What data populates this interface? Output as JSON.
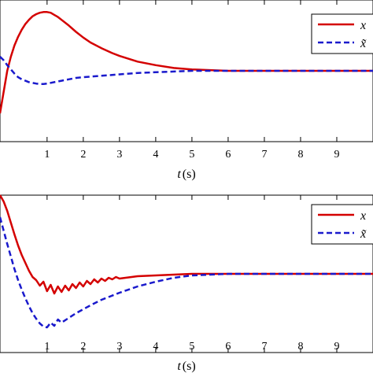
{
  "chart_data": [
    {
      "type": "line",
      "xlabel": "t",
      "xlabel_unit": "(s)",
      "xlim": [
        -0.3,
        10.0
      ],
      "x_ticks": [
        "1",
        "2",
        "3",
        "4",
        "5",
        "6",
        "7",
        "8",
        "9"
      ],
      "ylim": [
        -1.0,
        1.0
      ],
      "grid": false,
      "legend_position": "top-right",
      "series": [
        {
          "name": "x",
          "color": "#d40000",
          "style": "solid",
          "x": [
            -0.3,
            -0.2,
            -0.1,
            0,
            0.1,
            0.2,
            0.3,
            0.4,
            0.5,
            0.6,
            0.7,
            0.8,
            0.9,
            1.0,
            1.1,
            1.2,
            1.3,
            1.4,
            1.6,
            1.8,
            2.0,
            2.2,
            2.5,
            2.8,
            3.0,
            3.5,
            4.0,
            4.5,
            5.0,
            5.5,
            6,
            7,
            8,
            9,
            10
          ],
          "y": [
            -0.6,
            -0.3,
            0.0,
            0.2,
            0.36,
            0.48,
            0.58,
            0.66,
            0.72,
            0.77,
            0.8,
            0.82,
            0.83,
            0.83,
            0.82,
            0.79,
            0.76,
            0.72,
            0.64,
            0.55,
            0.47,
            0.4,
            0.32,
            0.25,
            0.21,
            0.13,
            0.08,
            0.04,
            0.02,
            0.01,
            0,
            0,
            0,
            0,
            0
          ]
        },
        {
          "name": "x̃",
          "color": "#1a1acc",
          "style": "dashed",
          "x": [
            -0.3,
            -0.2,
            -0.1,
            0,
            0.1,
            0.2,
            0.3,
            0.4,
            0.5,
            0.6,
            0.7,
            0.8,
            0.9,
            1.0,
            1.1,
            1.2,
            1.4,
            1.6,
            1.8,
            2.0,
            2.5,
            3.0,
            3.5,
            4.0,
            4.5,
            5.0,
            6,
            7,
            8,
            9,
            10
          ],
          "y": [
            0.2,
            0.15,
            0.08,
            0.02,
            -0.04,
            -0.09,
            -0.12,
            -0.14,
            -0.16,
            -0.17,
            -0.18,
            -0.185,
            -0.185,
            -0.18,
            -0.17,
            -0.16,
            -0.14,
            -0.12,
            -0.1,
            -0.09,
            -0.07,
            -0.05,
            -0.03,
            -0.02,
            -0.01,
            0,
            0,
            0,
            0,
            0,
            0
          ]
        }
      ]
    },
    {
      "type": "line",
      "xlabel": "t",
      "xlabel_unit": "(s)",
      "xlim": [
        -0.3,
        10.0
      ],
      "x_ticks": [
        "1",
        "2",
        "3",
        "4",
        "5",
        "6",
        "7",
        "8",
        "9"
      ],
      "ylim": [
        -1.0,
        1.0
      ],
      "grid": false,
      "legend_position": "top-right",
      "series": [
        {
          "name": "x",
          "color": "#d40000",
          "style": "solid",
          "x": [
            -0.3,
            -0.2,
            -0.1,
            0,
            0.1,
            0.2,
            0.3,
            0.4,
            0.5,
            0.6,
            0.7,
            0.8,
            0.9,
            1.0,
            1.1,
            1.2,
            1.3,
            1.4,
            1.5,
            1.6,
            1.7,
            1.8,
            1.9,
            2.0,
            2.1,
            2.2,
            2.3,
            2.4,
            2.5,
            2.6,
            2.7,
            2.8,
            2.9,
            3.0,
            3.5,
            4.0,
            4.5,
            5.0,
            6,
            7,
            8,
            9,
            10
          ],
          "y": [
            1.0,
            0.92,
            0.8,
            0.65,
            0.5,
            0.36,
            0.24,
            0.14,
            0.04,
            -0.04,
            -0.08,
            -0.15,
            -0.1,
            -0.22,
            -0.14,
            -0.25,
            -0.16,
            -0.23,
            -0.15,
            -0.21,
            -0.13,
            -0.18,
            -0.11,
            -0.16,
            -0.09,
            -0.13,
            -0.07,
            -0.11,
            -0.06,
            -0.09,
            -0.05,
            -0.07,
            -0.04,
            -0.06,
            -0.03,
            -0.02,
            -0.01,
            0,
            0,
            0,
            0,
            0,
            0
          ]
        },
        {
          "name": "x̃",
          "color": "#1a1acc",
          "style": "dashed",
          "x": [
            -0.3,
            -0.2,
            -0.1,
            0,
            0.1,
            0.2,
            0.3,
            0.4,
            0.5,
            0.6,
            0.7,
            0.8,
            0.9,
            1.0,
            1.1,
            1.2,
            1.3,
            1.4,
            1.6,
            1.8,
            2.0,
            2.2,
            2.5,
            3.0,
            3.5,
            4.0,
            4.5,
            5.0,
            5.5,
            6,
            7,
            8,
            9,
            10
          ],
          "y": [
            0.72,
            0.55,
            0.38,
            0.22,
            0.06,
            -0.08,
            -0.2,
            -0.31,
            -0.41,
            -0.5,
            -0.57,
            -0.63,
            -0.67,
            -0.68,
            -0.62,
            -0.66,
            -0.58,
            -0.62,
            -0.56,
            -0.5,
            -0.45,
            -0.4,
            -0.33,
            -0.24,
            -0.16,
            -0.1,
            -0.05,
            -0.02,
            -0.01,
            0,
            0,
            0,
            0,
            0
          ]
        }
      ]
    }
  ]
}
